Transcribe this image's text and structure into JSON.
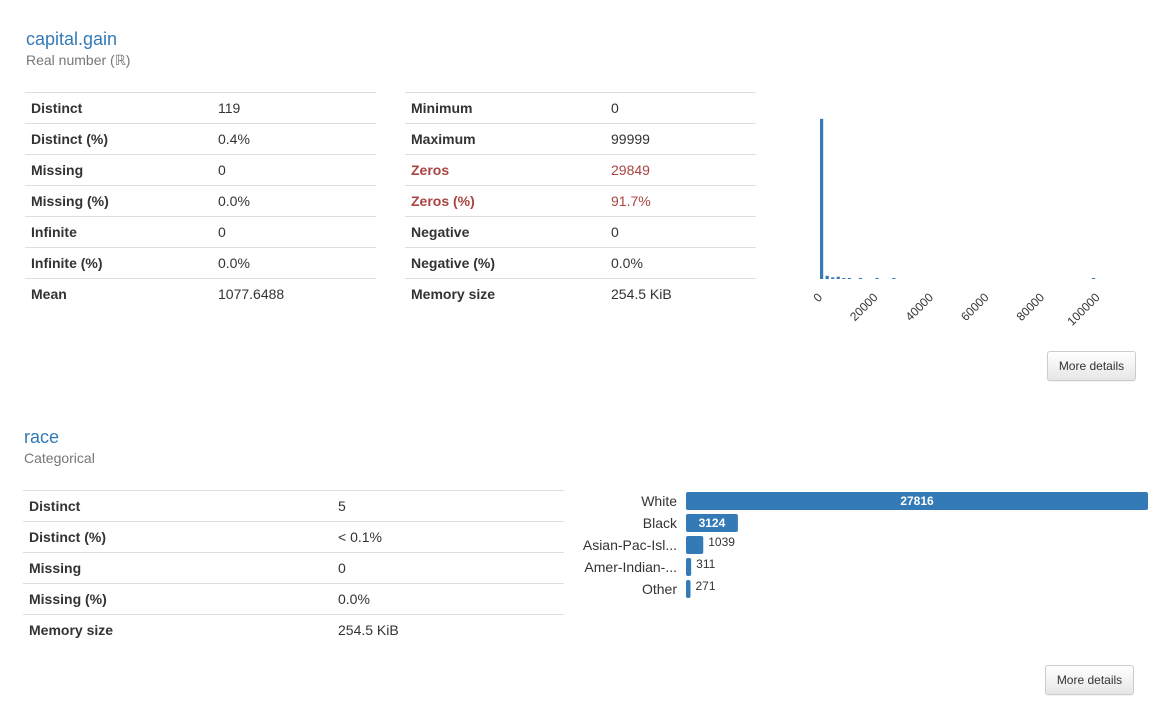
{
  "capital_gain": {
    "title": "capital.gain",
    "type": "Real number (ℝ)",
    "stats_left": [
      {
        "label": "Distinct",
        "value": "119"
      },
      {
        "label": "Distinct (%)",
        "value": "0.4%"
      },
      {
        "label": "Missing",
        "value": "0"
      },
      {
        "label": "Missing (%)",
        "value": "0.0%"
      },
      {
        "label": "Infinite",
        "value": "0"
      },
      {
        "label": "Infinite (%)",
        "value": "0.0%"
      },
      {
        "label": "Mean",
        "value": "1077.6488"
      }
    ],
    "stats_right": [
      {
        "label": "Minimum",
        "value": "0"
      },
      {
        "label": "Maximum",
        "value": "99999"
      },
      {
        "label": "Zeros",
        "value": "29849",
        "alert": true
      },
      {
        "label": "Zeros (%)",
        "value": "91.7%",
        "alert": true
      },
      {
        "label": "Negative",
        "value": "0"
      },
      {
        "label": "Negative (%)",
        "value": "0.0%"
      },
      {
        "label": "Memory size",
        "value": "254.5 KiB"
      }
    ],
    "more_details": "More details",
    "histogram": {
      "type": "bar",
      "x_ticks": [
        "0",
        "20000",
        "40000",
        "60000",
        "80000",
        "100000"
      ],
      "bin_starts": [
        0,
        2000,
        4000,
        6000,
        8000,
        10000,
        14000,
        20000,
        26000,
        98000
      ],
      "values": [
        29849,
        600,
        300,
        420,
        120,
        60,
        200,
        40,
        30,
        160
      ],
      "ylim": [
        0,
        30000
      ],
      "color": "#337ab7"
    }
  },
  "race": {
    "title": "race",
    "type": "Categorical",
    "stats": [
      {
        "label": "Distinct",
        "value": "5"
      },
      {
        "label": "Distinct (%)",
        "value": "< 0.1%"
      },
      {
        "label": "Missing",
        "value": "0"
      },
      {
        "label": "Missing (%)",
        "value": "0.0%"
      },
      {
        "label": "Memory size",
        "value": "254.5 KiB"
      }
    ],
    "more_details": "More details",
    "chart_data": {
      "type": "bar",
      "orientation": "horizontal",
      "categories": [
        "White",
        "Black",
        "Asian-Pac-Isl...",
        "Amer-Indian-...",
        "Other"
      ],
      "values": [
        27816,
        3124,
        1039,
        311,
        271
      ],
      "labels": [
        "27816",
        "3124",
        "1039",
        "311",
        "271"
      ],
      "color": "#337ab7"
    }
  }
}
